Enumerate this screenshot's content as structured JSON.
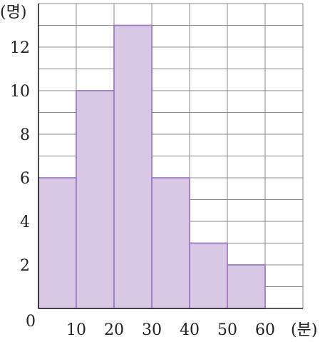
{
  "chart_data": {
    "type": "histogram",
    "x_unit": "(분)",
    "y_unit": "(명)",
    "origin_label": "0",
    "x_ticks": [
      "10",
      "20",
      "30",
      "40",
      "50",
      "60"
    ],
    "y_ticks": [
      "2",
      "4",
      "6",
      "8",
      "10",
      "12"
    ],
    "bins": [
      [
        0,
        10
      ],
      [
        10,
        20
      ],
      [
        20,
        30
      ],
      [
        30,
        40
      ],
      [
        40,
        50
      ],
      [
        50,
        60
      ]
    ],
    "values": [
      6,
      10,
      13,
      6,
      3,
      2
    ],
    "xlim": [
      0,
      70
    ],
    "ylim": [
      0,
      14
    ],
    "grid": true,
    "bar_color": "#d8c8e6",
    "bar_edge_color": "#a07ac0"
  }
}
